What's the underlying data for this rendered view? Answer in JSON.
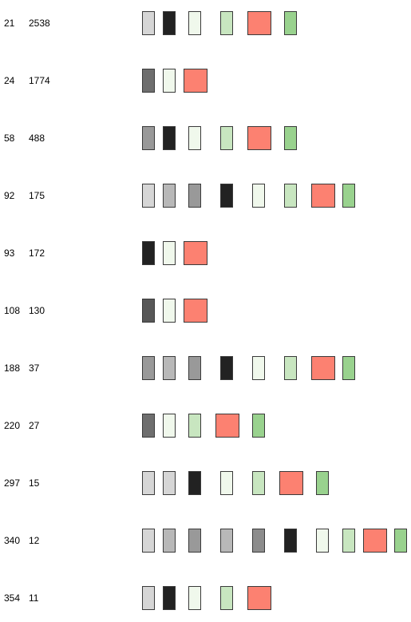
{
  "legend": {},
  "palette": {
    "gray-100": "#d6d6d6",
    "gray-200": "#b8b8b8",
    "gray-300": "#999999",
    "gray-400": "#8c8c8c",
    "gray-500": "#6e6e6e",
    "gray-600": "#575757",
    "black": "#222222",
    "green-50": "#f0f8ec",
    "green-100": "#c8e6c0",
    "green-200": "#99d28e",
    "salmon": "#fc8171"
  },
  "rows": [
    {
      "id": "21",
      "count": "2538",
      "blocks": [
        "gray-100",
        "black",
        "green-50",
        "green-100",
        "salmon",
        "green-200"
      ]
    },
    {
      "id": "24",
      "count": "1774",
      "blocks": [
        "gray-500",
        "green-50",
        "salmon"
      ]
    },
    {
      "id": "58",
      "count": "488",
      "blocks": [
        "gray-300",
        "black",
        "green-50",
        "green-100",
        "salmon",
        "green-200"
      ]
    },
    {
      "id": "92",
      "count": "175",
      "blocks": [
        "gray-100",
        "gray-200",
        "gray-300",
        "black",
        "green-50",
        "green-100",
        "salmon",
        "green-200"
      ]
    },
    {
      "id": "93",
      "count": "172",
      "blocks": [
        "black",
        "green-50",
        "salmon"
      ]
    },
    {
      "id": "108",
      "count": "130",
      "blocks": [
        "gray-600",
        "green-50",
        "salmon"
      ]
    },
    {
      "id": "188",
      "count": "37",
      "blocks": [
        "gray-300",
        "gray-200",
        "gray-300",
        "black",
        "green-50",
        "green-100",
        "salmon",
        "green-200"
      ]
    },
    {
      "id": "220",
      "count": "27",
      "blocks": [
        "gray-500",
        "green-50",
        "green-100",
        "salmon",
        "green-200"
      ]
    },
    {
      "id": "297",
      "count": "15",
      "blocks": [
        "gray-100",
        "gray-100",
        "black",
        "green-50",
        "green-100",
        "salmon",
        "green-200"
      ]
    },
    {
      "id": "340",
      "count": "12",
      "blocks": [
        "gray-100",
        "gray-200",
        "gray-300",
        "gray-200",
        "gray-400",
        "black",
        "green-50",
        "green-100",
        "salmon",
        "green-200"
      ]
    },
    {
      "id": "354",
      "count": "11",
      "blocks": [
        "gray-100",
        "black",
        "green-50",
        "green-100",
        "salmon"
      ]
    }
  ]
}
